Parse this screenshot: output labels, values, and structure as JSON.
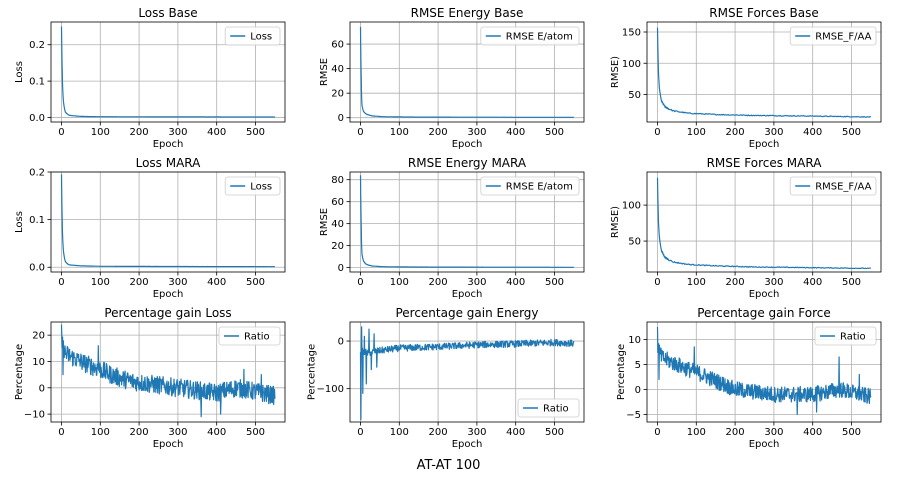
{
  "figure": {
    "suptitle": "AT-AT 100",
    "line_color": "#1f77b4"
  },
  "chart_data": [
    {
      "type": "line",
      "title": "Loss Base",
      "xlabel": "Epoch",
      "ylabel": "Loss",
      "xlim": [
        -27,
        576
      ],
      "ylim": [
        -0.0125,
        0.2625
      ],
      "xticks": [
        0,
        100,
        200,
        300,
        400,
        500
      ],
      "yticks": [
        0.0,
        0.1,
        0.2
      ],
      "yticklabels": [
        "0.0",
        "0.1",
        "0.2"
      ],
      "grid": true,
      "legend_position": "upper right",
      "series": [
        {
          "name": "Loss",
          "model": "decay",
          "points": [
            [
              0,
              0.25
            ],
            [
              2,
              0.12
            ],
            [
              5,
              0.045
            ],
            [
              10,
              0.015
            ],
            [
              20,
              0.006
            ],
            [
              50,
              0.003
            ],
            [
              100,
              0.002
            ],
            [
              300,
              0.0015
            ],
            [
              550,
              0.0012
            ]
          ]
        }
      ]
    },
    {
      "type": "line",
      "title": "RMSE Energy Base",
      "xlabel": "Epoch",
      "ylabel": "RMSE",
      "xlim": [
        -27,
        576
      ],
      "ylim": [
        -3.5,
        78
      ],
      "xticks": [
        0,
        100,
        200,
        300,
        400,
        500
      ],
      "yticks": [
        0,
        20,
        40,
        60
      ],
      "yticklabels": [
        "0",
        "20",
        "40",
        "60"
      ],
      "grid": true,
      "legend_position": "upper right",
      "series": [
        {
          "name": "RMSE E/atom",
          "model": "decay",
          "points": [
            [
              0,
              74
            ],
            [
              2,
              30
            ],
            [
              4,
              10
            ],
            [
              8,
              5
            ],
            [
              15,
              3
            ],
            [
              30,
              1.5
            ],
            [
              60,
              0.8
            ],
            [
              150,
              0.5
            ],
            [
              550,
              0.3
            ]
          ]
        }
      ]
    },
    {
      "type": "line",
      "title": "RMSE Forces Base",
      "xlabel": "Epoch",
      "ylabel": "RMSE)",
      "xlim": [
        -27,
        576
      ],
      "ylim": [
        6,
        166
      ],
      "xticks": [
        0,
        100,
        200,
        300,
        400,
        500
      ],
      "yticks": [
        50,
        100,
        150
      ],
      "yticklabels": [
        "50",
        "100",
        "150"
      ],
      "grid": true,
      "legend_position": "upper right",
      "series": [
        {
          "name": "RMSE_F/AA",
          "model": "decay",
          "points": [
            [
              0,
              157
            ],
            [
              2,
              95
            ],
            [
              5,
              60
            ],
            [
              10,
              40
            ],
            [
              20,
              30
            ],
            [
              40,
              24
            ],
            [
              80,
              20
            ],
            [
              150,
              18
            ],
            [
              250,
              16.5
            ],
            [
              400,
              15.5
            ],
            [
              550,
              14
            ]
          ]
        }
      ]
    },
    {
      "type": "line",
      "title": "Loss MARA",
      "xlabel": "Epoch",
      "ylabel": "Loss",
      "xlim": [
        -27,
        576
      ],
      "ylim": [
        -0.01,
        0.2
      ],
      "xticks": [
        0,
        100,
        200,
        300,
        400,
        500
      ],
      "yticks": [
        0.0,
        0.1,
        0.2
      ],
      "yticklabels": [
        "0.0",
        "0.1",
        "0.2"
      ],
      "grid": true,
      "legend_position": "upper right",
      "series": [
        {
          "name": "Loss",
          "model": "decay",
          "points": [
            [
              0,
              0.195
            ],
            [
              2,
              0.09
            ],
            [
              5,
              0.035
            ],
            [
              10,
              0.012
            ],
            [
              20,
              0.005
            ],
            [
              50,
              0.003
            ],
            [
              100,
              0.002
            ],
            [
              300,
              0.0015
            ],
            [
              550,
              0.0012
            ]
          ]
        }
      ]
    },
    {
      "type": "line",
      "title": "RMSE Energy MARA",
      "xlabel": "Epoch",
      "ylabel": "RMSE",
      "xlim": [
        -27,
        576
      ],
      "ylim": [
        -4,
        87
      ],
      "xticks": [
        0,
        100,
        200,
        300,
        400,
        500
      ],
      "yticks": [
        0,
        20,
        40,
        60,
        80
      ],
      "yticklabels": [
        "0",
        "20",
        "40",
        "60",
        "80"
      ],
      "grid": true,
      "legend_position": "upper right",
      "series": [
        {
          "name": "RMSE E/atom",
          "model": "decay",
          "points": [
            [
              0,
              84
            ],
            [
              2,
              35
            ],
            [
              4,
              12
            ],
            [
              8,
              6
            ],
            [
              15,
              3
            ],
            [
              30,
              1.5
            ],
            [
              60,
              0.8
            ],
            [
              150,
              0.5
            ],
            [
              550,
              0.3
            ]
          ]
        }
      ]
    },
    {
      "type": "line",
      "title": "RMSE Forces MARA",
      "xlabel": "Epoch",
      "ylabel": "RMSE)",
      "xlim": [
        -27,
        576
      ],
      "ylim": [
        7,
        146
      ],
      "xticks": [
        0,
        100,
        200,
        300,
        400,
        500
      ],
      "yticks": [
        50,
        100
      ],
      "yticklabels": [
        "50",
        "100"
      ],
      "grid": true,
      "legend_position": "upper right",
      "series": [
        {
          "name": "RMSE_F/AA",
          "model": "decay",
          "points": [
            [
              0,
              138
            ],
            [
              2,
              85
            ],
            [
              5,
              55
            ],
            [
              10,
              37
            ],
            [
              20,
              27
            ],
            [
              40,
              21
            ],
            [
              80,
              17.5
            ],
            [
              150,
              15.5
            ],
            [
              250,
              14
            ],
            [
              400,
              13
            ],
            [
              550,
              12
            ]
          ]
        }
      ]
    },
    {
      "type": "line",
      "title": "Percentage gain Loss",
      "xlabel": "Epoch",
      "ylabel": "Percentage",
      "xlim": [
        -27,
        576
      ],
      "ylim": [
        -13,
        25
      ],
      "xticks": [
        0,
        100,
        200,
        300,
        400,
        500
      ],
      "yticks": [
        -10,
        0,
        10,
        20
      ],
      "yticklabels": [
        "−10",
        "0",
        "10",
        "20"
      ],
      "grid": true,
      "legend_position": "upper right",
      "series": [
        {
          "name": "Ratio",
          "model": "noisy",
          "trend": [
            [
              0,
              18
            ],
            [
              10,
              13
            ],
            [
              50,
              10
            ],
            [
              100,
              7
            ],
            [
              200,
              2
            ],
            [
              300,
              0
            ],
            [
              400,
              -2
            ],
            [
              450,
              0
            ],
            [
              550,
              -3
            ]
          ],
          "noise": 3.5,
          "spikes": [
            [
              0,
              24
            ],
            [
              4,
              5
            ],
            [
              95,
              16
            ],
            [
              360,
              -11
            ],
            [
              410,
              -10
            ],
            [
              470,
              7
            ],
            [
              515,
              5
            ]
          ]
        }
      ]
    },
    {
      "type": "line",
      "title": "Percentage gain Energy",
      "xlabel": "Epoch",
      "ylabel": "Percentage",
      "xlim": [
        -27,
        576
      ],
      "ylim": [
        -170,
        40
      ],
      "xticks": [
        0,
        100,
        200,
        300,
        400,
        500
      ],
      "yticks": [
        -100,
        0
      ],
      "yticklabels": [
        "−100",
        "0"
      ],
      "grid": true,
      "legend_position": "lower right",
      "series": [
        {
          "name": "Ratio",
          "model": "noisy",
          "trend": [
            [
              0,
              -20
            ],
            [
              20,
              -25
            ],
            [
              50,
              -20
            ],
            [
              100,
              -15
            ],
            [
              200,
              -12
            ],
            [
              300,
              -8
            ],
            [
              400,
              -6
            ],
            [
              500,
              -3
            ],
            [
              550,
              -5
            ]
          ],
          "noise": 7,
          "spikes": [
            [
              1,
              -165
            ],
            [
              3,
              30
            ],
            [
              6,
              -110
            ],
            [
              10,
              10
            ],
            [
              15,
              -90
            ],
            [
              22,
              25
            ],
            [
              28,
              -60
            ],
            [
              35,
              15
            ],
            [
              42,
              -55
            ]
          ]
        }
      ]
    },
    {
      "type": "line",
      "title": "Percentage gain Force",
      "xlabel": "Epoch",
      "ylabel": "Percentage",
      "xlim": [
        -27,
        576
      ],
      "ylim": [
        -6.5,
        13.5
      ],
      "xticks": [
        0,
        100,
        200,
        300,
        400,
        500
      ],
      "yticks": [
        -5,
        0,
        5,
        10
      ],
      "yticklabels": [
        "−5",
        "0",
        "5",
        "10"
      ],
      "grid": true,
      "legend_position": "upper right",
      "series": [
        {
          "name": "Ratio",
          "model": "noisy",
          "trend": [
            [
              0,
              9
            ],
            [
              10,
              6.5
            ],
            [
              50,
              5
            ],
            [
              100,
              3.5
            ],
            [
              200,
              0
            ],
            [
              300,
              -1
            ],
            [
              400,
              -1
            ],
            [
              470,
              0
            ],
            [
              550,
              -1.5
            ]
          ],
          "noise": 1.6,
          "spikes": [
            [
              0,
              12.5
            ],
            [
              4,
              2
            ],
            [
              95,
              8.5
            ],
            [
              360,
              -5
            ],
            [
              410,
              -4.5
            ],
            [
              468,
              6.5
            ],
            [
              520,
              3
            ]
          ]
        }
      ]
    }
  ]
}
